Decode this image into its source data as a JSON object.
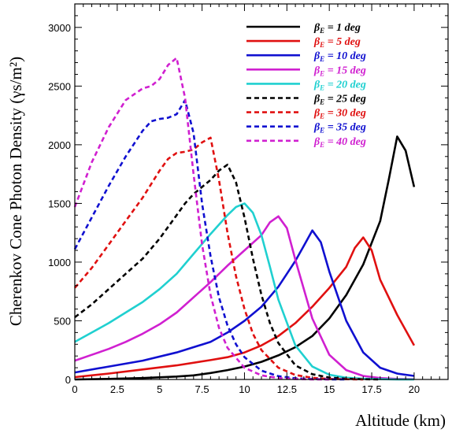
{
  "chart_data": {
    "type": "line",
    "xlabel": "Altitude (km)",
    "ylabel": "Cherenkov Cone Photon Density (γs/m²)",
    "xlim": [
      0,
      22
    ],
    "ylim": [
      0,
      3200
    ],
    "xticks": [
      0,
      2.5,
      5,
      7.5,
      10,
      12.5,
      15,
      17.5,
      20
    ],
    "xtick_labels": [
      "0",
      "2.5",
      "5",
      "7.5",
      "10",
      "12.5",
      "15",
      "17.5",
      "20"
    ],
    "yticks": [
      0,
      500,
      1000,
      1500,
      2000,
      2500,
      3000
    ],
    "ytick_labels": [
      "0",
      "500",
      "1000",
      "1500",
      "2000",
      "2500",
      "3000"
    ],
    "legend_position": "top-right",
    "series": [
      {
        "name": "βE = 1 deg",
        "legend_main": "β",
        "legend_sub": "E",
        "legend_rest": " = 1 deg",
        "color": "#000000",
        "dash": "solid",
        "x": [
          0,
          2,
          4,
          6,
          7,
          8,
          9,
          10,
          11,
          12,
          13,
          14,
          15,
          16,
          17,
          18,
          18.5,
          19,
          19.5,
          20
        ],
        "y": [
          0,
          5,
          12,
          25,
          35,
          55,
          80,
          110,
          150,
          205,
          275,
          370,
          520,
          720,
          980,
          1350,
          1700,
          2070,
          1950,
          1640
        ]
      },
      {
        "name": "βE = 5 deg",
        "legend_main": "β",
        "legend_sub": "E",
        "legend_rest": " = 5 deg",
        "color": "#e01010",
        "dash": "solid",
        "x": [
          0,
          2,
          4,
          6,
          8,
          9,
          10,
          11,
          12,
          13,
          14,
          15,
          16,
          16.5,
          17,
          17.5,
          18,
          19,
          20
        ],
        "y": [
          20,
          50,
          85,
          120,
          165,
          190,
          230,
          290,
          370,
          480,
          620,
          780,
          960,
          1120,
          1210,
          1100,
          850,
          550,
          290
        ]
      },
      {
        "name": "βE = 10 deg",
        "legend_main": "β",
        "legend_sub": "E",
        "legend_rest": " = 10 deg",
        "color": "#1010d0",
        "dash": "solid",
        "x": [
          0,
          2,
          4,
          6,
          8,
          9,
          10,
          11,
          12,
          12.5,
          13,
          13.5,
          14,
          14.5,
          15,
          16,
          17,
          18,
          19,
          20
        ],
        "y": [
          60,
          110,
          160,
          230,
          320,
          400,
          500,
          620,
          790,
          900,
          1010,
          1140,
          1270,
          1170,
          920,
          500,
          230,
          100,
          50,
          30
        ]
      },
      {
        "name": "βE = 15 deg",
        "legend_main": "β",
        "legend_sub": "E",
        "legend_rest": " = 15 deg",
        "color": "#d020d0",
        "dash": "solid",
        "x": [
          0,
          1,
          2,
          3,
          4,
          5,
          6,
          7,
          8,
          9,
          10,
          11,
          11.5,
          12,
          12.5,
          13,
          14,
          15,
          16,
          17,
          18,
          19,
          20
        ],
        "y": [
          160,
          210,
          260,
          320,
          390,
          470,
          570,
          700,
          830,
          970,
          1100,
          1230,
          1340,
          1390,
          1290,
          1020,
          520,
          210,
          80,
          30,
          12,
          5,
          2
        ]
      },
      {
        "name": "βE = 20 deg",
        "legend_main": "β",
        "legend_sub": "E",
        "legend_rest": " = 20 deg",
        "color": "#20d0d0",
        "dash": "solid",
        "x": [
          0,
          1,
          2,
          3,
          4,
          5,
          6,
          7,
          8,
          9,
          9.5,
          10,
          10.5,
          11,
          11.5,
          12,
          13,
          14,
          15,
          16,
          17,
          18,
          19,
          20
        ],
        "y": [
          320,
          400,
          480,
          570,
          660,
          770,
          900,
          1070,
          1240,
          1400,
          1470,
          1500,
          1420,
          1230,
          960,
          680,
          290,
          110,
          40,
          15,
          6,
          3,
          1,
          0
        ]
      },
      {
        "name": "βE = 25 deg",
        "legend_main": "β",
        "legend_sub": "E",
        "legend_rest": " = 25 deg",
        "color": "#000000",
        "dash": "dashed",
        "x": [
          0,
          1,
          2,
          3,
          4,
          5,
          6,
          6.5,
          7,
          7.5,
          8,
          8.5,
          9,
          9.5,
          10,
          10.5,
          11,
          11.5,
          12,
          13,
          14,
          15,
          16,
          17,
          18
        ],
        "y": [
          530,
          640,
          770,
          900,
          1030,
          1200,
          1400,
          1500,
          1580,
          1640,
          1700,
          1780,
          1830,
          1680,
          1380,
          1030,
          720,
          480,
          310,
          120,
          45,
          16,
          6,
          2,
          0
        ]
      },
      {
        "name": "βE = 30 deg",
        "legend_main": "β",
        "legend_sub": "E",
        "legend_rest": " = 30 deg",
        "color": "#e01010",
        "dash": "dashed",
        "x": [
          0,
          1,
          2,
          3,
          4,
          5,
          5.5,
          6,
          6.5,
          7,
          7.5,
          8,
          8.5,
          9,
          9.5,
          10,
          10.5,
          11,
          12,
          13,
          14,
          15,
          16,
          17
        ],
        "y": [
          780,
          950,
          1150,
          1350,
          1550,
          1780,
          1880,
          1930,
          1940,
          1960,
          2020,
          2060,
          1700,
          1250,
          880,
          600,
          390,
          250,
          100,
          38,
          14,
          5,
          2,
          0
        ]
      },
      {
        "name": "βE = 35 deg",
        "legend_main": "β",
        "legend_sub": "E",
        "legend_rest": " = 35 deg",
        "color": "#1010d0",
        "dash": "dashed",
        "x": [
          0,
          1,
          2,
          3,
          4,
          4.5,
          5,
          5.5,
          6,
          6.5,
          7,
          7.5,
          8,
          8.5,
          9,
          9.5,
          10,
          11,
          12,
          13,
          14,
          15,
          16
        ],
        "y": [
          1110,
          1380,
          1650,
          1900,
          2120,
          2200,
          2220,
          2230,
          2260,
          2380,
          2100,
          1500,
          1050,
          700,
          460,
          300,
          190,
          75,
          28,
          10,
          4,
          1,
          0
        ]
      },
      {
        "name": "βE = 40 deg",
        "legend_main": "β",
        "legend_sub": "E",
        "legend_rest": " = 40 deg",
        "color": "#d020d0",
        "dash": "dashed",
        "x": [
          0,
          1,
          2,
          3,
          4,
          4.5,
          5,
          5.5,
          6,
          6.5,
          7,
          7.5,
          8,
          8.5,
          9,
          10,
          11,
          12,
          13,
          14,
          15
        ],
        "y": [
          1470,
          1850,
          2150,
          2380,
          2480,
          2500,
          2560,
          2680,
          2740,
          2400,
          1750,
          1150,
          720,
          440,
          270,
          100,
          35,
          12,
          4,
          1,
          0
        ]
      }
    ]
  }
}
